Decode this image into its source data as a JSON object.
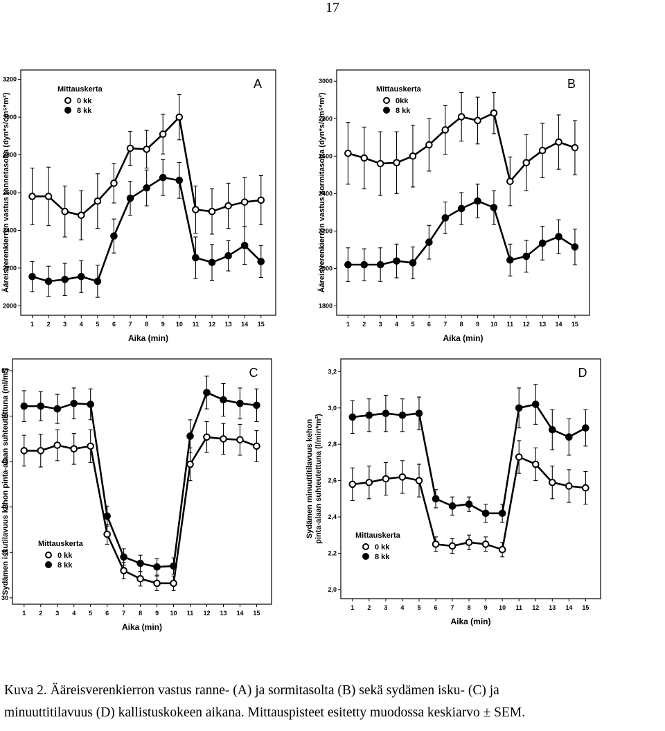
{
  "page_number": "17",
  "caption": {
    "line1": "Kuva 2. Ääreisverenkierron vastus ranne- (A) ja sormitasolta (B) sekä sydämen isku- (C) ja",
    "line2": "minuuttitilavuus (D) kallistuskokeen aikana. Mittauspisteet esitetty muodossa keskiarvo ± SEM."
  },
  "colors": {
    "open_marker_fill": "#ffffff",
    "filled_marker_fill": "#000000",
    "line": "#000000"
  },
  "chart_data": [
    {
      "type": "line",
      "panel_label": "A",
      "ylabel": "Ääreisverenkierron vastus rannetasolta (dyn*s/cm⁵*m²)",
      "xlabel": "Aika (min)",
      "legend_title": "Mittauskerta",
      "legend_position": "top-left",
      "grid": false,
      "x": [
        1,
        2,
        3,
        4,
        5,
        6,
        7,
        8,
        9,
        10,
        11,
        12,
        13,
        14,
        15
      ],
      "xlim": [
        0.3,
        15.9
      ],
      "ylim": [
        1950,
        3250
      ],
      "yticks": [
        2000,
        2200,
        2400,
        2600,
        2800,
        3000,
        3200
      ],
      "ytick_labels": [
        "2000",
        "2200",
        "2400",
        "2600",
        "2800",
        "3000",
        "3200"
      ],
      "series": [
        {
          "name": "0 kk",
          "marker": "open",
          "values": [
            2580,
            2580,
            2500,
            2480,
            2555,
            2650,
            2835,
            2830,
            2910,
            3000,
            2510,
            2500,
            2530,
            2550,
            2560
          ],
          "err": [
            150,
            155,
            135,
            130,
            145,
            105,
            90,
            100,
            105,
            120,
            125,
            120,
            120,
            130,
            130
          ]
        },
        {
          "name": "8 kk",
          "marker": "filled",
          "values": [
            2155,
            2130,
            2140,
            2155,
            2130,
            2370,
            2570,
            2625,
            2680,
            2665,
            2255,
            2230,
            2265,
            2320,
            2235
          ],
          "err": [
            80,
            80,
            85,
            85,
            85,
            90,
            90,
            95,
            95,
            95,
            110,
            95,
            80,
            100,
            85
          ]
        }
      ]
    },
    {
      "type": "line",
      "panel_label": "B",
      "ylabel": "Ääreisverenkierron vastus sormitasolta (dyn*s/cm⁵*m²)",
      "xlabel": "Aika (min)",
      "legend_title": "Mittauskerta",
      "legend_position": "top-left",
      "grid": false,
      "x": [
        1,
        2,
        3,
        4,
        5,
        6,
        7,
        8,
        9,
        10,
        11,
        12,
        13,
        14,
        15
      ],
      "xlim": [
        0.3,
        15.9
      ],
      "ylim": [
        1750,
        3060
      ],
      "yticks": [
        1800,
        2000,
        2200,
        2400,
        2600,
        2800,
        3000
      ],
      "ytick_labels": [
        "1800",
        "2000",
        "2200",
        "2400",
        "2600",
        "2800",
        "3000"
      ],
      "series": [
        {
          "name": "0kk",
          "marker": "open",
          "values": [
            2615,
            2590,
            2560,
            2565,
            2600,
            2660,
            2740,
            2810,
            2790,
            2830,
            2465,
            2565,
            2630,
            2675,
            2645
          ],
          "err": [
            165,
            165,
            170,
            165,
            165,
            140,
            130,
            130,
            125,
            110,
            130,
            150,
            145,
            145,
            145
          ]
        },
        {
          "name": "8 kk",
          "marker": "filled",
          "values": [
            2020,
            2020,
            2020,
            2040,
            2030,
            2140,
            2270,
            2320,
            2360,
            2325,
            2045,
            2065,
            2135,
            2170,
            2115
          ],
          "err": [
            90,
            85,
            90,
            90,
            85,
            90,
            85,
            85,
            90,
            90,
            85,
            85,
            90,
            90,
            95
          ]
        }
      ]
    },
    {
      "type": "line",
      "panel_label": "C",
      "ylabel": "Sydämen iskutilavuus kehon pinta-alaan suhteutettuna (ml/m²)",
      "xlabel": "Aika (min)",
      "legend_title": "Mittauskerta",
      "legend_position": "bottom-left",
      "grid": false,
      "x": [
        1,
        2,
        3,
        4,
        5,
        6,
        7,
        8,
        9,
        10,
        11,
        12,
        13,
        14,
        15
      ],
      "xlim": [
        0.3,
        15.9
      ],
      "ylim": [
        29.3,
        56.3
      ],
      "yticks": [
        30,
        35,
        40,
        45,
        50,
        55
      ],
      "ytick_labels": [
        "30",
        "35",
        "40",
        "45",
        "50",
        "55"
      ],
      "series": [
        {
          "name": "0 kk",
          "marker": "open",
          "values": [
            46.2,
            46.2,
            46.8,
            46.4,
            46.7,
            37.0,
            33.0,
            32.1,
            31.6,
            31.6,
            44.7,
            47.7,
            47.5,
            47.4,
            46.7
          ],
          "err": [
            1.7,
            1.8,
            1.7,
            1.7,
            1.8,
            1.1,
            0.9,
            0.8,
            0.8,
            0.8,
            1.8,
            1.7,
            1.7,
            1.7,
            1.7
          ]
        },
        {
          "name": "8 kk",
          "marker": "filled",
          "values": [
            51.1,
            51.1,
            50.8,
            51.4,
            51.3,
            39.0,
            34.5,
            33.8,
            33.4,
            33.5,
            47.8,
            52.6,
            51.8,
            51.4,
            51.2
          ],
          "err": [
            1.7,
            1.6,
            1.6,
            1.7,
            1.7,
            1.1,
            0.9,
            0.9,
            0.9,
            0.9,
            1.8,
            1.8,
            1.8,
            1.7,
            1.8
          ]
        }
      ]
    },
    {
      "type": "line",
      "panel_label": "D",
      "ylabel": "Sydämen minuuttitilavuus kehon pinta-alaan suhteutettuna (l/min*m²)",
      "xlabel": "Aika (min)",
      "legend_title": "Mittauskerta",
      "legend_position": "bottom-left",
      "grid": false,
      "x": [
        1,
        2,
        3,
        4,
        5,
        6,
        7,
        8,
        9,
        10,
        11,
        12,
        13,
        14,
        15
      ],
      "xlim": [
        0.3,
        15.9
      ],
      "ylim": [
        1.95,
        3.27
      ],
      "yticks": [
        2.0,
        2.2,
        2.4,
        2.6,
        2.8,
        3.0,
        3.2
      ],
      "ytick_labels": [
        "2,0",
        "2,2",
        "2,4",
        "2,6",
        "2,8",
        "3,0",
        "3,2"
      ],
      "series": [
        {
          "name": "0 kk",
          "marker": "open",
          "values": [
            2.58,
            2.59,
            2.61,
            2.62,
            2.6,
            2.25,
            2.24,
            2.26,
            2.25,
            2.22,
            2.73,
            2.69,
            2.59,
            2.57,
            2.56
          ],
          "err": [
            0.09,
            0.09,
            0.09,
            0.09,
            0.09,
            0.04,
            0.04,
            0.04,
            0.04,
            0.04,
            0.09,
            0.09,
            0.09,
            0.09,
            0.09
          ]
        },
        {
          "name": "8 kk",
          "marker": "filled",
          "values": [
            2.95,
            2.96,
            2.97,
            2.96,
            2.97,
            2.5,
            2.46,
            2.47,
            2.42,
            2.42,
            3.0,
            3.02,
            2.88,
            2.84,
            2.89
          ],
          "err": [
            0.09,
            0.09,
            0.1,
            0.09,
            0.09,
            0.05,
            0.05,
            0.04,
            0.05,
            0.05,
            0.11,
            0.11,
            0.11,
            0.1,
            0.1
          ]
        }
      ]
    }
  ]
}
